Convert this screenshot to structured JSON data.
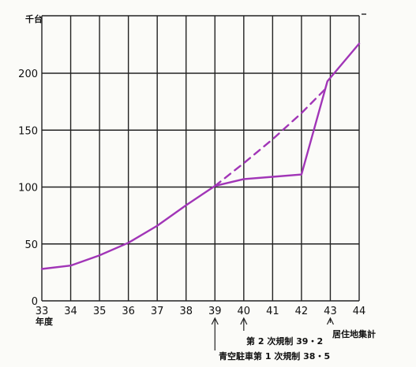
{
  "chart_data": {
    "type": "line",
    "y_unit_label": "千台",
    "x_year_label": "年度",
    "xlim": [
      33,
      44
    ],
    "ylim": [
      0,
      230
    ],
    "x_ticks": [
      33,
      34,
      35,
      36,
      37,
      38,
      39,
      40,
      41,
      42,
      43,
      44
    ],
    "y_ticks": [
      0,
      50,
      100,
      150,
      200
    ],
    "grid": true,
    "colors": {
      "series": "#a135b7",
      "grid": "#222222"
    },
    "series": [
      {
        "style": "solid",
        "points": [
          {
            "x": 33,
            "y": 28
          },
          {
            "x": 34,
            "y": 31
          },
          {
            "x": 35,
            "y": 40
          },
          {
            "x": 36,
            "y": 51
          },
          {
            "x": 37,
            "y": 66
          },
          {
            "x": 38,
            "y": 84
          },
          {
            "x": 39,
            "y": 101
          },
          {
            "x": 40,
            "y": 107
          },
          {
            "x": 41,
            "y": 109
          },
          {
            "x": 42,
            "y": 111
          },
          {
            "x": 42.9,
            "y": 193
          },
          {
            "x": 44,
            "y": 226
          }
        ]
      },
      {
        "style": "dashed",
        "points": [
          {
            "x": 39,
            "y": 101
          },
          {
            "x": 40,
            "y": 121
          },
          {
            "x": 41,
            "y": 142
          },
          {
            "x": 42,
            "y": 165
          },
          {
            "x": 42.9,
            "y": 188
          }
        ]
      }
    ],
    "annotations": [
      {
        "x": 39,
        "text": "青空駐車第 1 次規制 38・5"
      },
      {
        "x": 40,
        "text": "第 2 次規制 39・2"
      },
      {
        "x": 43,
        "text": "居住地集計"
      }
    ]
  }
}
